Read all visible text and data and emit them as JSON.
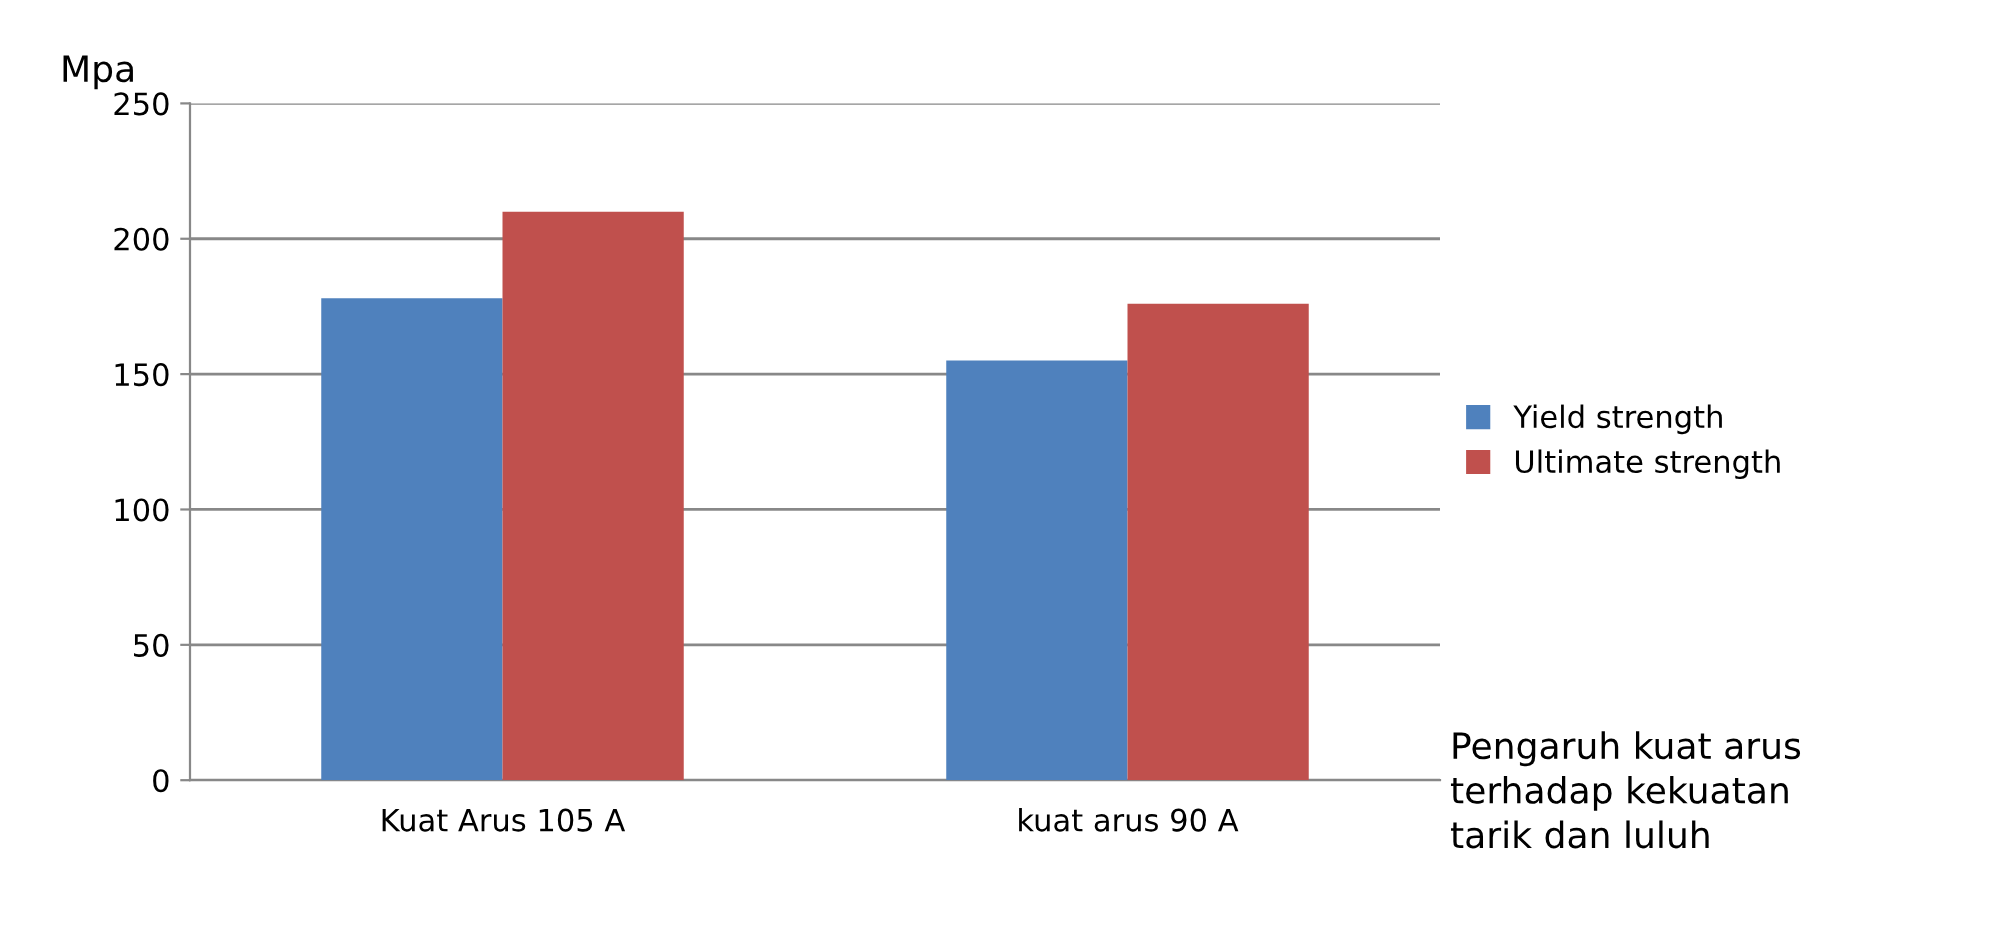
{
  "chart_data": {
    "type": "bar",
    "ylabel": "Mpa",
    "categories": [
      "Kuat Arus 105 A",
      "kuat arus 90 A"
    ],
    "series": [
      {
        "name": "Yield strength",
        "color": "#4f81bd",
        "values": [
          178,
          155
        ]
      },
      {
        "name": "Ultimate strength",
        "color": "#c0504d",
        "values": [
          210,
          176
        ]
      }
    ],
    "ylim": [
      0,
      250
    ],
    "yticks": [
      0,
      50,
      100,
      150,
      200,
      250
    ],
    "grid": "y",
    "legend": "right",
    "annotations": [
      "Pengaruh kuat arus\nterhadap kekuatan\ntarik dan luluh"
    ]
  }
}
